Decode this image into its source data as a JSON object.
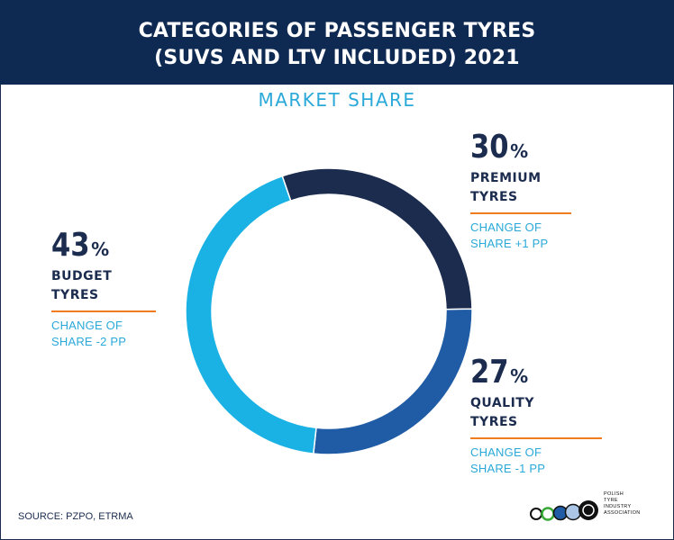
{
  "header": {
    "title_line1": "CATEGORIES OF PASSENGER TYRES",
    "title_line2": "(SUVS AND LTV INCLUDED) 2021"
  },
  "subtitle": "MARKET SHARE",
  "source": "SOURCE: PZPO, ETRMA",
  "logo": {
    "lines": [
      "POLISH",
      "TYRE",
      "INDUSTRY",
      "ASSOCIATION"
    ]
  },
  "colors": {
    "premium": "#1b2c4f",
    "quality": "#1f5ca5",
    "budget": "#1ab2e4",
    "accent_rule": "#f07c1e",
    "header_bg": "#0f2a52"
  },
  "chart_data": {
    "type": "pie",
    "title": "CATEGORIES OF PASSENGER TYRES (SUVS AND LTV INCLUDED) 2021",
    "subtitle": "MARKET SHARE",
    "categories": [
      "PREMIUM TYRES",
      "QUALITY TYRES",
      "BUDGET TYRES"
    ],
    "values": [
      30,
      27,
      43
    ],
    "unit": "%",
    "changes": [
      "CHANGE OF SHARE +1 PP",
      "CHANGE OF SHARE -1 PP",
      "CHANGE OF SHARE -2 PP"
    ]
  },
  "labels": {
    "premium": {
      "pct": "30",
      "sign": "%",
      "cat1": "PREMIUM",
      "cat2": "TYRES",
      "ch1": "CHANGE OF",
      "ch2": "SHARE  +1 PP"
    },
    "quality": {
      "pct": "27",
      "sign": "%",
      "cat1": "QUALITY",
      "cat2": "TYRES",
      "ch1": "CHANGE OF",
      "ch2": "SHARE  -1 PP"
    },
    "budget": {
      "pct": "43",
      "sign": "%",
      "cat1": "BUDGET",
      "cat2": "TYRES",
      "ch1": "CHANGE OF",
      "ch2": "SHARE  -2 PP"
    }
  }
}
